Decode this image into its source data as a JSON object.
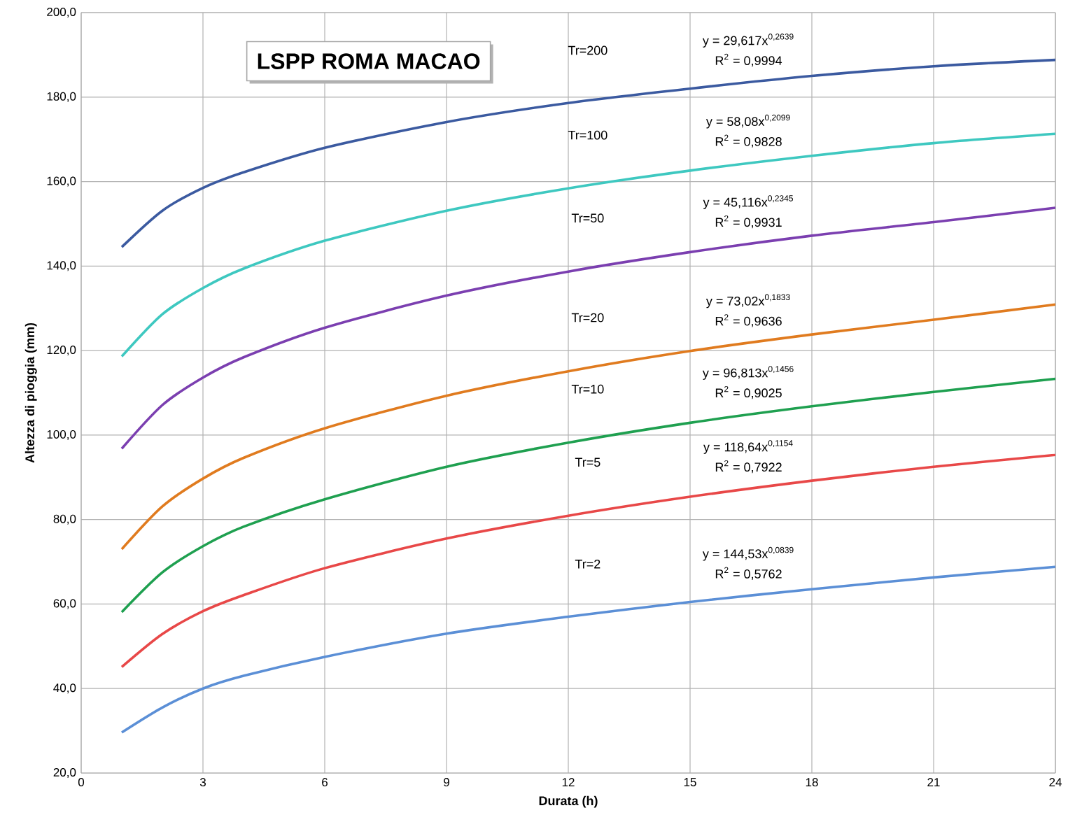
{
  "chart_data": {
    "type": "line",
    "title": "LSPP ROMA MACAO",
    "xlabel": "Durata  (h)",
    "ylabel": "Altezza di pioggia (mm)",
    "x": [
      1,
      2,
      3,
      4,
      6,
      9,
      12,
      15,
      18,
      21,
      24
    ],
    "series": [
      {
        "color": "#3b5aa0",
        "values": [
          144.5,
          153.1,
          158.5,
          162.2,
          168.0,
          174.1,
          178.6,
          182.0,
          185.0,
          187.3,
          188.8
        ]
      },
      {
        "color": "#3ec8c0",
        "values": [
          118.6,
          128.6,
          134.8,
          139.4,
          146.0,
          153.1,
          158.4,
          162.6,
          166.1,
          169.1,
          171.3
        ]
      },
      {
        "color": "#7b3fb0",
        "values": [
          96.8,
          107.1,
          113.6,
          118.4,
          125.4,
          133.0,
          138.7,
          143.3,
          147.2,
          150.4,
          153.8
        ]
      },
      {
        "color": "#e07b1f",
        "values": [
          73.0,
          83.1,
          89.7,
          94.6,
          101.6,
          109.3,
          115.1,
          119.9,
          123.8,
          127.3,
          130.9
        ]
      },
      {
        "color": "#1fa050",
        "values": [
          58.1,
          67.5,
          73.7,
          78.3,
          84.8,
          92.5,
          98.2,
          102.9,
          106.8,
          110.2,
          113.3
        ]
      },
      {
        "color": "#e84848",
        "values": [
          45.1,
          52.9,
          58.3,
          62.1,
          68.5,
          75.5,
          80.9,
          85.4,
          89.2,
          92.5,
          95.3
        ]
      },
      {
        "color": "#5b8fd6",
        "values": [
          29.6,
          35.5,
          40.0,
          43.0,
          47.5,
          53.0,
          57.0,
          60.5,
          63.5,
          66.3,
          68.8
        ]
      }
    ],
    "xlim": [
      0,
      24
    ],
    "xticks": [
      0,
      3,
      6,
      9,
      12,
      15,
      18,
      21,
      24
    ],
    "ylim": [
      20,
      200
    ],
    "yticks": [
      {
        "value": 20,
        "label": "20,0"
      },
      {
        "value": 40,
        "label": "40,0"
      },
      {
        "value": 60,
        "label": "60,0"
      },
      {
        "value": 80,
        "label": "80,0"
      },
      {
        "value": 100,
        "label": "100,0"
      },
      {
        "value": 120,
        "label": "120,0"
      },
      {
        "value": 140,
        "label": "140,0"
      },
      {
        "value": 160,
        "label": "160,0"
      },
      {
        "value": 180,
        "label": "180,0"
      },
      {
        "value": 200,
        "label": "200,0"
      }
    ],
    "grid": true,
    "marker": "none",
    "line_style": "solid",
    "annotations": [
      "Tr=200",
      "y = 29,617x$^{0,2639}$",
      "R$^{2}$ = 0,9994",
      "Tr=100",
      "y = 58,08x$^{0,2099}$",
      "R$^{2}$ = 0,9828",
      "Tr=50",
      "y = 45,116x$^{0,2345}$",
      "R$^{2}$ = 0,9931",
      "Tr=20",
      "y = 73,02x$^{0,1833}$",
      "R$^{2}$ = 0,9636",
      "Tr=10",
      "y = 96,813x$^{0,1456}$",
      "R$^{2}$ = 0,9025",
      "Tr=5",
      "y = 118,64x$^{0,1154}$",
      "R$^{2}$ = 0,7922",
      "Tr=2",
      "y = 144,53x$^{0,0839}$",
      "R$^{2}$ = 0,5762"
    ]
  }
}
